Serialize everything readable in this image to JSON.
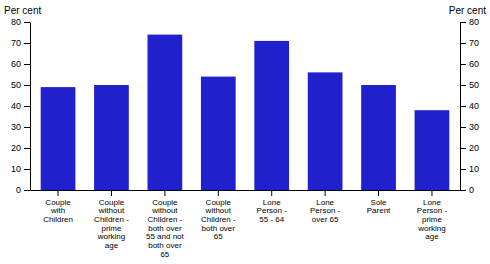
{
  "chart_data": {
    "type": "bar",
    "categories": [
      "Couple\nwith\nChildren",
      "Couple\nwithout\nChildren -\nprime\nworking\nage",
      "Couple\nwithout\nChildren -\nboth over\n55 and not\nboth over\n65",
      "Couple\nwithout\nChildren -\nboth over\n65",
      "Lone\nPerson -\n55 - 64",
      "Lone\nPerson -\nover 65",
      "Sole\nParent",
      "Lone\nPerson -\nprime\nworking\nage"
    ],
    "values": [
      49,
      50,
      74,
      54,
      71,
      56,
      50,
      38
    ],
    "color": "#2020cc",
    "ylim": [
      0,
      80
    ],
    "yticks": [
      0,
      10,
      20,
      30,
      40,
      50,
      60,
      70,
      80
    ],
    "y2lim": [
      0,
      80
    ],
    "y2ticks": [
      0,
      10,
      20,
      30,
      40,
      50,
      60,
      70,
      80
    ],
    "ylabel": "Per cent",
    "y2label": "Per cent",
    "grid": false
  }
}
